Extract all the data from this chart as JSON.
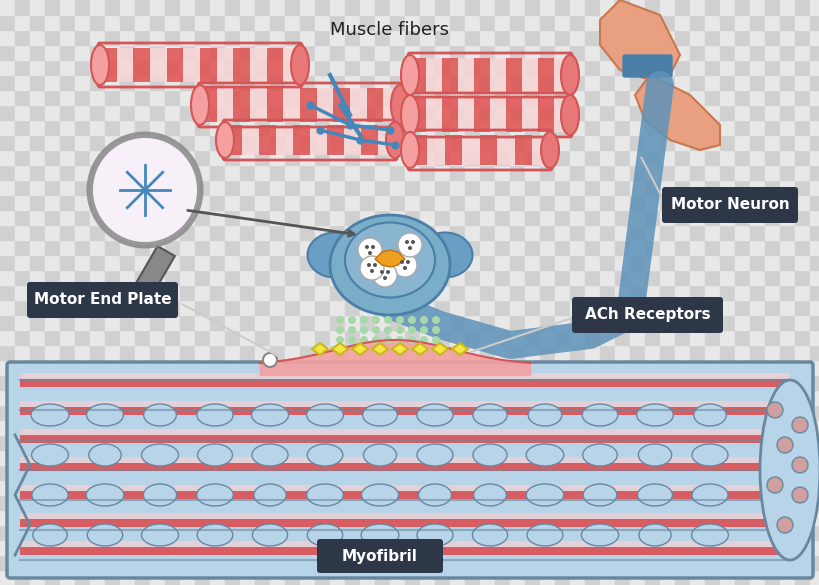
{
  "bg_color": "#f0f0f0",
  "labels": {
    "muscle_fibers": "Muscle fibers",
    "motor_neuron": "Motor Neuron",
    "motor_end_plate": "Motor End Plate",
    "ach_receptors": "ACh Receptors",
    "myofibril": "Myofibril"
  },
  "label_bg": "#2d3748",
  "label_fg": "#ffffff",
  "colors": {
    "muscle_pink_light": "#f4a0a0",
    "muscle_pink_mid": "#e87878",
    "muscle_pink_dark": "#d45555",
    "muscle_stripe_red": "#e05050",
    "muscle_stripe_white": "#f9d5d5",
    "neuron_blue": "#6b9ec4",
    "neuron_blue_dark": "#4a7fa8",
    "neuron_body": "#7aadc8",
    "vesicle_white": "#ffffff",
    "vesicle_outline": "#888888",
    "receptor_yellow": "#f5e642",
    "receptor_outline": "#c8b820",
    "synapse_dots": "#a8d8a8",
    "motor_skin": "#e8a080",
    "motor_skin_dark": "#c87850",
    "myofibril_blue": "#b8d4e8",
    "myofibril_dark": "#6888a0",
    "myofibril_red": "#e04040",
    "magnifier_gray": "#888888",
    "magnifier_dark": "#555555",
    "neurite_blue": "#4488bb",
    "checkerboard_light": "#e8e8e8",
    "checkerboard_dark": "#d0d0d0"
  },
  "figsize": [
    8.2,
    5.85
  ],
  "dpi": 100
}
